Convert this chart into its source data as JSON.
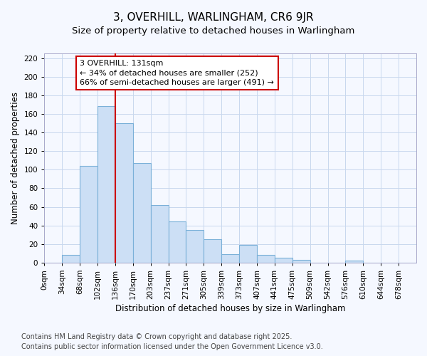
{
  "title": "3, OVERHILL, WARLINGHAM, CR6 9JR",
  "subtitle": "Size of property relative to detached houses in Warlingham",
  "xlabel": "Distribution of detached houses by size in Warlingham",
  "ylabel": "Number of detached properties",
  "bar_labels": [
    "0sqm",
    "34sqm",
    "68sqm",
    "102sqm",
    "136sqm",
    "170sqm",
    "203sqm",
    "237sqm",
    "271sqm",
    "305sqm",
    "339sqm",
    "373sqm",
    "407sqm",
    "441sqm",
    "475sqm",
    "509sqm",
    "542sqm",
    "576sqm",
    "610sqm",
    "644sqm",
    "678sqm"
  ],
  "bar_values": [
    0,
    8,
    104,
    168,
    150,
    107,
    62,
    44,
    35,
    25,
    9,
    19,
    8,
    5,
    3,
    0,
    0,
    2,
    0,
    0,
    0
  ],
  "bar_color": "#ccdff5",
  "bar_edge_color": "#7ab0d8",
  "background_color": "#f5f8ff",
  "grid_color": "#c8d8ee",
  "vline_color": "#cc0000",
  "annotation_text": "3 OVERHILL: 131sqm\n← 34% of detached houses are smaller (252)\n66% of semi-detached houses are larger (491) →",
  "annotation_box_color": "#ffffff",
  "annotation_box_edge": "#cc0000",
  "ylim": [
    0,
    225
  ],
  "yticks": [
    0,
    20,
    40,
    60,
    80,
    100,
    120,
    140,
    160,
    180,
    200,
    220
  ],
  "bin_width": 34,
  "n_bars": 21,
  "vline_bin": 4,
  "footer_line1": "Contains HM Land Registry data © Crown copyright and database right 2025.",
  "footer_line2": "Contains public sector information licensed under the Open Government Licence v3.0.",
  "title_fontsize": 11,
  "subtitle_fontsize": 9.5,
  "axis_label_fontsize": 8.5,
  "tick_fontsize": 7.5,
  "footer_fontsize": 7,
  "annotation_fontsize": 8
}
